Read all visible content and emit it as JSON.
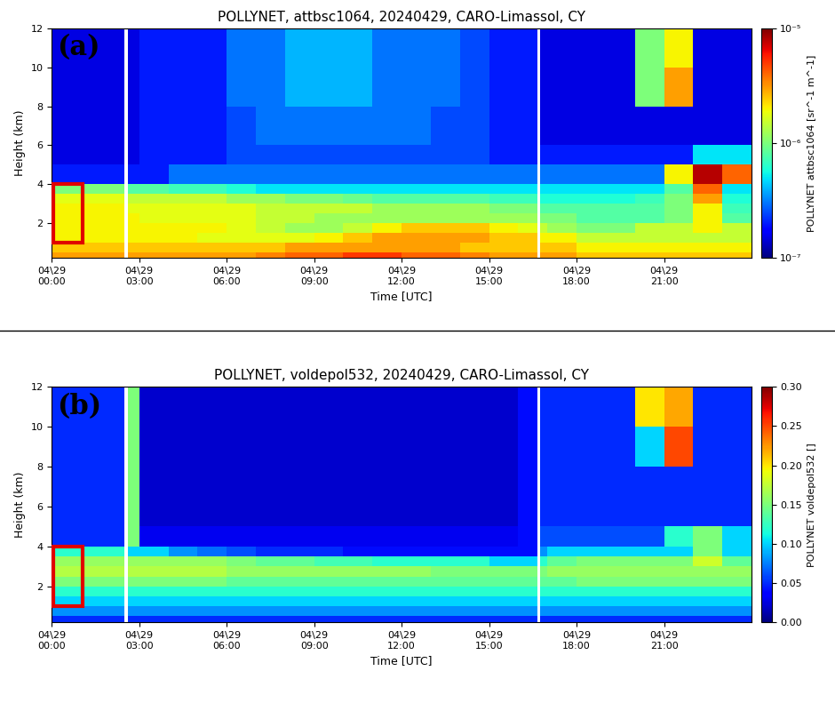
{
  "chart_data": [
    {
      "type": "heatmap",
      "title": "POLLYNET, attbsc1064, 20240429, CARO-Limassol, CY",
      "panel_label": "(a)",
      "x_label": "Time [UTC]",
      "y_label": "Height (km)",
      "xlim": [
        0,
        24
      ],
      "xticks": [
        {
          "value": 0,
          "label": "04\\29\n00:00"
        },
        {
          "value": 3,
          "label": "04\\29\n03:00"
        },
        {
          "value": 6,
          "label": "04\\29\n06:00"
        },
        {
          "value": 9,
          "label": "04\\29\n09:00"
        },
        {
          "value": 12,
          "label": "04\\29\n12:00"
        },
        {
          "value": 15,
          "label": "04\\29\n15:00"
        },
        {
          "value": 18,
          "label": "04\\29\n18:00"
        },
        {
          "value": 21,
          "label": "04\\29\n21:00"
        }
      ],
      "ylim": [
        0.2,
        12
      ],
      "yticks": [
        2,
        4,
        6,
        8,
        10,
        12
      ],
      "x_edges": [
        0,
        1,
        2,
        2.5,
        2.6,
        3,
        4,
        5,
        6,
        7,
        8,
        9,
        10,
        11,
        12,
        13,
        14,
        15,
        16,
        16.65,
        16.75,
        17,
        18,
        19,
        20,
        21,
        22,
        23,
        24
      ],
      "y_edges": [
        0.2,
        0.5,
        1,
        1.5,
        2,
        2.5,
        3,
        3.5,
        4,
        5,
        6,
        8,
        10,
        12
      ],
      "cells": [
        [
          3e-06,
          3e-06,
          3e-06,
          null,
          3e-06,
          3e-06,
          3e-06,
          3e-06,
          3e-06,
          3.5e-06,
          4e-06,
          4e-06,
          5e-06,
          5e-06,
          4e-06,
          4e-06,
          3.5e-06,
          3e-06,
          3e-06,
          null,
          3e-06,
          3e-06,
          2.5e-06,
          2.5e-06,
          2.5e-06,
          2.5e-06,
          2.5e-06,
          2.5e-06
        ],
        [
          2.5e-06,
          2.5e-06,
          2.5e-06,
          null,
          2.5e-06,
          2.5e-06,
          2.5e-06,
          2.5e-06,
          2.5e-06,
          2.5e-06,
          3e-06,
          3e-06,
          3e-06,
          3e-06,
          3e-06,
          3e-06,
          2.5e-06,
          2.5e-06,
          2.5e-06,
          null,
          2.5e-06,
          2.5e-06,
          2e-06,
          2e-06,
          2e-06,
          2e-06,
          2e-06,
          2e-06
        ],
        [
          2e-06,
          2e-06,
          2e-06,
          null,
          2e-06,
          2e-06,
          2e-06,
          1.8e-06,
          1.8e-06,
          1.8e-06,
          1.8e-06,
          2e-06,
          2.5e-06,
          3e-06,
          3e-06,
          3e-06,
          3e-06,
          2.5e-06,
          2.5e-06,
          null,
          2e-06,
          2e-06,
          1.5e-06,
          1.5e-06,
          1.5e-06,
          1.5e-06,
          1.5e-06,
          1.5e-06
        ],
        [
          2e-06,
          2e-06,
          2e-06,
          null,
          2e-06,
          2e-06,
          2e-06,
          2e-06,
          1.8e-06,
          1.5e-06,
          1.2e-06,
          1.2e-06,
          1.5e-06,
          2e-06,
          2.5e-06,
          2.5e-06,
          2.5e-06,
          2e-06,
          1.8e-06,
          null,
          1.5e-06,
          1.2e-06,
          1e-06,
          1e-06,
          1.5e-06,
          1.5e-06,
          2e-06,
          1.5e-06
        ],
        [
          2e-06,
          2e-06,
          2e-06,
          null,
          2e-06,
          1.8e-06,
          1.8e-06,
          1.8e-06,
          1.8e-06,
          1.5e-06,
          1.5e-06,
          1.2e-06,
          1.2e-06,
          1.2e-06,
          1.2e-06,
          1.2e-06,
          1.2e-06,
          1.2e-06,
          1.2e-06,
          null,
          1e-06,
          1e-06,
          8e-07,
          8e-07,
          8e-07,
          1e-06,
          2e-06,
          8e-07
        ],
        [
          2e-06,
          2e-06,
          2e-06,
          null,
          1.8e-06,
          1.8e-06,
          1.8e-06,
          1.8e-06,
          1.8e-06,
          1.5e-06,
          1.5e-06,
          1.5e-06,
          1.5e-06,
          1.2e-06,
          1.2e-06,
          1.2e-06,
          1.2e-06,
          1e-06,
          1e-06,
          null,
          8e-07,
          8e-07,
          8e-07,
          8e-07,
          8e-07,
          1e-06,
          2e-06,
          7e-07
        ],
        [
          1.8e-06,
          1.8e-06,
          1.8e-06,
          null,
          1.5e-06,
          1.5e-06,
          1.5e-06,
          1.5e-06,
          1.2e-06,
          1.2e-06,
          1e-06,
          1e-06,
          9e-07,
          8e-07,
          8e-07,
          8e-07,
          8e-07,
          7e-07,
          7e-07,
          null,
          6e-07,
          6e-07,
          6e-07,
          6e-07,
          7e-07,
          1e-06,
          3e-06,
          6e-07
        ],
        [
          1e-06,
          1e-06,
          1e-06,
          null,
          8e-07,
          8e-07,
          7e-07,
          7e-07,
          6e-07,
          5e-07,
          5e-07,
          5e-07,
          5e-07,
          5e-07,
          5e-07,
          5e-07,
          5e-07,
          5e-07,
          5e-07,
          null,
          5e-07,
          5e-07,
          5e-07,
          5e-07,
          5e-07,
          8e-07,
          4e-06,
          5e-07
        ],
        [
          2e-07,
          2e-07,
          2e-07,
          null,
          2e-07,
          2e-07,
          3e-07,
          3e-07,
          3e-07,
          3e-07,
          3e-07,
          3e-07,
          3e-07,
          3e-07,
          3e-07,
          3e-07,
          3e-07,
          3e-07,
          3e-07,
          null,
          3e-07,
          3e-07,
          3e-07,
          3e-07,
          3e-07,
          2e-06,
          8e-06,
          4e-06
        ],
        [
          1.5e-07,
          1.5e-07,
          1.5e-07,
          null,
          1.5e-07,
          2e-07,
          2e-07,
          2e-07,
          2.5e-07,
          2.5e-07,
          2.5e-07,
          2.5e-07,
          2.5e-07,
          2.5e-07,
          2.5e-07,
          2.5e-07,
          2.5e-07,
          2e-07,
          2e-07,
          null,
          2e-07,
          2e-07,
          2e-07,
          2e-07,
          2e-07,
          2e-07,
          5e-07,
          5e-07
        ],
        [
          1.5e-07,
          1.5e-07,
          1.5e-07,
          null,
          1.5e-07,
          2e-07,
          2e-07,
          2e-07,
          2.5e-07,
          3e-07,
          3e-07,
          3e-07,
          3e-07,
          3e-07,
          3e-07,
          2.5e-07,
          2.5e-07,
          2e-07,
          2e-07,
          null,
          1.5e-07,
          1.5e-07,
          1.5e-07,
          1.5e-07,
          1.5e-07,
          1.5e-07,
          1.5e-07,
          1.5e-07
        ],
        [
          1.5e-07,
          1.5e-07,
          1.5e-07,
          null,
          1.5e-07,
          2e-07,
          2e-07,
          2e-07,
          3e-07,
          3e-07,
          4e-07,
          4e-07,
          4e-07,
          3e-07,
          3e-07,
          3e-07,
          2.5e-07,
          2e-07,
          2e-07,
          null,
          1.5e-07,
          1.5e-07,
          1.5e-07,
          1.5e-07,
          1e-06,
          3e-06,
          1.5e-07,
          1.5e-07
        ],
        [
          1.5e-07,
          1.5e-07,
          1.5e-07,
          null,
          1.5e-07,
          2e-07,
          2e-07,
          2e-07,
          3e-07,
          3e-07,
          4e-07,
          4e-07,
          4e-07,
          3e-07,
          3e-07,
          3e-07,
          2.5e-07,
          2e-07,
          2e-07,
          null,
          1.5e-07,
          1.5e-07,
          1.5e-07,
          1.5e-07,
          1e-06,
          2e-06,
          1.5e-07,
          1.5e-07
        ]
      ],
      "colorbar": {
        "label": "POLLYNET attbsc1064 [sr^-1 m^-1]",
        "range": [
          1e-07,
          1e-05
        ],
        "log": true,
        "ticks": [
          {
            "value": 1e-07,
            "label": "10⁻⁷"
          },
          {
            "value": 1e-06,
            "label": "10⁻⁶"
          },
          {
            "value": 1e-05,
            "label": "10⁻⁵"
          }
        ]
      },
      "highlight": {
        "x": [
          0.05,
          1.05
        ],
        "y": [
          1.0,
          4.0
        ],
        "color": "#e00000"
      }
    },
    {
      "type": "heatmap",
      "title": "POLLYNET, voldepol532, 20240429, CARO-Limassol, CY",
      "panel_label": "(b)",
      "x_label": "Time [UTC]",
      "y_label": "Height (km)",
      "xlim": [
        0,
        24
      ],
      "xticks": [
        {
          "value": 0,
          "label": "04\\29\n00:00"
        },
        {
          "value": 3,
          "label": "04\\29\n03:00"
        },
        {
          "value": 6,
          "label": "04\\29\n06:00"
        },
        {
          "value": 9,
          "label": "04\\29\n09:00"
        },
        {
          "value": 12,
          "label": "04\\29\n12:00"
        },
        {
          "value": 15,
          "label": "04\\29\n15:00"
        },
        {
          "value": 18,
          "label": "04\\29\n18:00"
        },
        {
          "value": 21,
          "label": "04\\29\n21:00"
        }
      ],
      "ylim": [
        0.2,
        12
      ],
      "yticks": [
        2,
        4,
        6,
        8,
        10,
        12
      ],
      "x_edges": [
        0,
        1,
        2,
        2.5,
        2.6,
        3,
        4,
        5,
        6,
        7,
        8,
        9,
        10,
        11,
        12,
        13,
        14,
        15,
        16,
        16.65,
        16.75,
        17,
        18,
        19,
        20,
        21,
        22,
        23,
        24
      ],
      "y_edges": [
        0.2,
        0.5,
        1,
        1.5,
        2,
        2.5,
        3,
        3.5,
        4,
        5,
        6,
        8,
        10,
        12
      ],
      "cells": [
        [
          0.05,
          0.05,
          0.05,
          null,
          0.05,
          0.05,
          0.05,
          0.05,
          0.05,
          0.05,
          0.05,
          0.05,
          0.05,
          0.05,
          0.05,
          0.05,
          0.05,
          0.05,
          0.05,
          null,
          0.05,
          0.05,
          0.05,
          0.05,
          0.05,
          0.05,
          0.05,
          0.05
        ],
        [
          0.08,
          0.08,
          0.08,
          null,
          0.08,
          0.08,
          0.08,
          0.08,
          0.08,
          0.08,
          0.08,
          0.08,
          0.08,
          0.08,
          0.08,
          0.08,
          0.08,
          0.08,
          0.08,
          null,
          0.08,
          0.08,
          0.08,
          0.08,
          0.08,
          0.08,
          0.08,
          0.08
        ],
        [
          0.1,
          0.1,
          0.1,
          null,
          0.1,
          0.1,
          0.1,
          0.1,
          0.1,
          0.1,
          0.1,
          0.1,
          0.1,
          0.1,
          0.1,
          0.1,
          0.1,
          0.1,
          0.1,
          null,
          0.1,
          0.1,
          0.1,
          0.1,
          0.1,
          0.1,
          0.1,
          0.1
        ],
        [
          0.12,
          0.12,
          0.12,
          null,
          0.12,
          0.12,
          0.12,
          0.12,
          0.12,
          0.12,
          0.12,
          0.12,
          0.12,
          0.12,
          0.12,
          0.12,
          0.12,
          0.12,
          0.12,
          null,
          0.12,
          0.12,
          0.12,
          0.12,
          0.12,
          0.12,
          0.12,
          0.12
        ],
        [
          0.15,
          0.15,
          0.15,
          null,
          0.15,
          0.15,
          0.15,
          0.15,
          0.14,
          0.14,
          0.14,
          0.14,
          0.14,
          0.14,
          0.14,
          0.14,
          0.14,
          0.14,
          0.14,
          null,
          0.14,
          0.14,
          0.15,
          0.15,
          0.15,
          0.15,
          0.15,
          0.15
        ],
        [
          0.17,
          0.17,
          0.17,
          null,
          0.17,
          0.17,
          0.17,
          0.17,
          0.16,
          0.16,
          0.16,
          0.16,
          0.16,
          0.16,
          0.16,
          0.15,
          0.15,
          0.15,
          0.15,
          null,
          0.15,
          0.16,
          0.16,
          0.16,
          0.16,
          0.16,
          0.16,
          0.16
        ],
        [
          0.16,
          0.16,
          0.16,
          null,
          0.16,
          0.16,
          0.16,
          0.16,
          0.15,
          0.14,
          0.14,
          0.13,
          0.13,
          0.12,
          0.12,
          0.12,
          0.12,
          0.1,
          0.1,
          null,
          0.12,
          0.14,
          0.15,
          0.15,
          0.15,
          0.15,
          0.18,
          0.14
        ],
        [
          0.12,
          0.12,
          0.12,
          null,
          0.1,
          0.1,
          0.08,
          0.07,
          0.06,
          0.05,
          0.05,
          0.05,
          0.04,
          0.04,
          0.04,
          0.04,
          0.04,
          0.04,
          0.04,
          null,
          0.08,
          0.1,
          0.1,
          0.1,
          0.1,
          0.1,
          0.15,
          0.1
        ],
        [
          0.05,
          0.05,
          0.05,
          null,
          0.15,
          0.03,
          0.03,
          0.03,
          0.03,
          0.03,
          0.03,
          0.03,
          0.03,
          0.03,
          0.03,
          0.03,
          0.03,
          0.03,
          0.04,
          null,
          0.06,
          0.06,
          0.06,
          0.06,
          0.06,
          0.12,
          0.15,
          0.1
        ],
        [
          0.05,
          0.05,
          0.05,
          null,
          0.15,
          0.02,
          0.02,
          0.02,
          0.02,
          0.02,
          0.02,
          0.02,
          0.02,
          0.02,
          0.02,
          0.02,
          0.02,
          0.02,
          0.04,
          null,
          0.05,
          0.05,
          0.05,
          0.05,
          0.05,
          0.05,
          0.05,
          0.05
        ],
        [
          0.05,
          0.05,
          0.05,
          null,
          0.15,
          0.02,
          0.02,
          0.02,
          0.02,
          0.02,
          0.02,
          0.02,
          0.02,
          0.02,
          0.02,
          0.02,
          0.02,
          0.02,
          0.04,
          null,
          0.05,
          0.05,
          0.05,
          0.05,
          0.05,
          0.05,
          0.05,
          0.05
        ],
        [
          0.05,
          0.05,
          0.05,
          null,
          0.15,
          0.02,
          0.02,
          0.02,
          0.02,
          0.02,
          0.02,
          0.02,
          0.02,
          0.02,
          0.02,
          0.02,
          0.02,
          0.02,
          0.04,
          null,
          0.05,
          0.05,
          0.05,
          0.05,
          0.1,
          0.25,
          0.05,
          0.05
        ],
        [
          0.05,
          0.05,
          0.05,
          null,
          0.15,
          0.02,
          0.02,
          0.02,
          0.02,
          0.02,
          0.02,
          0.02,
          0.02,
          0.02,
          0.02,
          0.02,
          0.02,
          0.02,
          0.04,
          null,
          0.05,
          0.05,
          0.05,
          0.05,
          0.2,
          0.22,
          0.05,
          0.05
        ]
      ],
      "colorbar": {
        "label": "POLLYNET voldepol532 []",
        "range": [
          0.0,
          0.3
        ],
        "log": false,
        "ticks": [
          {
            "value": 0.0,
            "label": "0.00"
          },
          {
            "value": 0.05,
            "label": "0.05"
          },
          {
            "value": 0.1,
            "label": "0.10"
          },
          {
            "value": 0.15,
            "label": "0.15"
          },
          {
            "value": 0.2,
            "label": "0.20"
          },
          {
            "value": 0.25,
            "label": "0.25"
          },
          {
            "value": 0.3,
            "label": "0.30"
          }
        ]
      },
      "highlight": {
        "x": [
          0.05,
          1.05
        ],
        "y": [
          1.0,
          4.0
        ],
        "color": "#e00000"
      }
    }
  ]
}
